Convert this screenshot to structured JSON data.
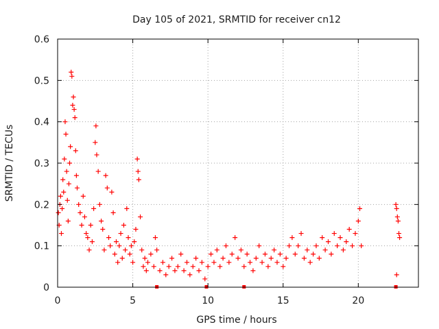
{
  "chart_data": {
    "type": "scatter",
    "title": "Day 105 of 2021, SRMTID for receiver cn12",
    "xlabel": "GPS time / hours",
    "ylabel": "SRMTID / TECUs",
    "xlim": [
      0,
      24
    ],
    "ylim": [
      0,
      0.6
    ],
    "grid": true,
    "x_ticks": [
      0,
      5,
      10,
      15,
      20
    ],
    "x_tick_labels": [
      "0",
      "5",
      "10",
      "15",
      "20"
    ],
    "y_ticks": [
      0,
      0.1,
      0.2,
      0.3,
      0.4,
      0.5,
      0.6
    ],
    "y_tick_labels": [
      "0",
      "0.1",
      "0.2",
      "0.3",
      "0.4",
      "0.5",
      "0.6"
    ],
    "series": [
      {
        "name": "SRMTID",
        "color": "#ff0000",
        "marker": "plus",
        "points": [
          [
            0.05,
            0.18
          ],
          [
            0.1,
            0.15
          ],
          [
            0.15,
            0.2
          ],
          [
            0.2,
            0.22
          ],
          [
            0.25,
            0.13
          ],
          [
            0.3,
            0.19
          ],
          [
            0.35,
            0.26
          ],
          [
            0.4,
            0.23
          ],
          [
            0.45,
            0.31
          ],
          [
            0.5,
            0.4
          ],
          [
            0.55,
            0.37
          ],
          [
            0.6,
            0.28
          ],
          [
            0.65,
            0.21
          ],
          [
            0.7,
            0.16
          ],
          [
            0.75,
            0.25
          ],
          [
            0.8,
            0.3
          ],
          [
            0.85,
            0.34
          ],
          [
            0.9,
            0.52
          ],
          [
            0.95,
            0.51
          ],
          [
            1.0,
            0.44
          ],
          [
            1.05,
            0.46
          ],
          [
            1.1,
            0.43
          ],
          [
            1.15,
            0.41
          ],
          [
            1.2,
            0.33
          ],
          [
            1.25,
            0.27
          ],
          [
            1.3,
            0.24
          ],
          [
            1.4,
            0.2
          ],
          [
            1.5,
            0.18
          ],
          [
            1.6,
            0.15
          ],
          [
            1.7,
            0.22
          ],
          [
            1.8,
            0.17
          ],
          [
            1.9,
            0.13
          ],
          [
            2.0,
            0.12
          ],
          [
            2.1,
            0.09
          ],
          [
            2.2,
            0.15
          ],
          [
            2.3,
            0.11
          ],
          [
            2.4,
            0.19
          ],
          [
            2.5,
            0.35
          ],
          [
            2.55,
            0.39
          ],
          [
            2.6,
            0.32
          ],
          [
            2.7,
            0.28
          ],
          [
            2.8,
            0.2
          ],
          [
            2.9,
            0.16
          ],
          [
            3.0,
            0.14
          ],
          [
            3.1,
            0.09
          ],
          [
            3.2,
            0.27
          ],
          [
            3.3,
            0.24
          ],
          [
            3.4,
            0.12
          ],
          [
            3.5,
            0.1
          ],
          [
            3.6,
            0.23
          ],
          [
            3.7,
            0.18
          ],
          [
            3.8,
            0.08
          ],
          [
            3.9,
            0.11
          ],
          [
            4.0,
            0.06
          ],
          [
            4.1,
            0.1
          ],
          [
            4.2,
            0.13
          ],
          [
            4.3,
            0.07
          ],
          [
            4.4,
            0.15
          ],
          [
            4.5,
            0.09
          ],
          [
            4.6,
            0.19
          ],
          [
            4.7,
            0.12
          ],
          [
            4.8,
            0.08
          ],
          [
            4.9,
            0.1
          ],
          [
            5.0,
            0.06
          ],
          [
            5.1,
            0.11
          ],
          [
            5.2,
            0.14
          ],
          [
            5.3,
            0.31
          ],
          [
            5.35,
            0.28
          ],
          [
            5.4,
            0.26
          ],
          [
            5.5,
            0.17
          ],
          [
            5.6,
            0.09
          ],
          [
            5.7,
            0.05
          ],
          [
            5.8,
            0.07
          ],
          [
            5.9,
            0.04
          ],
          [
            6.0,
            0.06
          ],
          [
            6.2,
            0.08
          ],
          [
            6.4,
            0.05
          ],
          [
            6.5,
            0.12
          ],
          [
            6.6,
            0.09
          ],
          [
            6.8,
            0.04
          ],
          [
            7.0,
            0.06
          ],
          [
            7.2,
            0.03
          ],
          [
            7.4,
            0.05
          ],
          [
            7.6,
            0.07
          ],
          [
            7.8,
            0.04
          ],
          [
            8.0,
            0.05
          ],
          [
            8.2,
            0.08
          ],
          [
            8.4,
            0.04
          ],
          [
            8.6,
            0.06
          ],
          [
            8.8,
            0.03
          ],
          [
            9.0,
            0.05
          ],
          [
            9.2,
            0.07
          ],
          [
            9.4,
            0.04
          ],
          [
            9.6,
            0.06
          ],
          [
            9.8,
            0.02
          ],
          [
            10.0,
            0.05
          ],
          [
            10.2,
            0.08
          ],
          [
            10.4,
            0.06
          ],
          [
            10.6,
            0.09
          ],
          [
            10.8,
            0.05
          ],
          [
            11.0,
            0.07
          ],
          [
            11.2,
            0.1
          ],
          [
            11.4,
            0.06
          ],
          [
            11.6,
            0.08
          ],
          [
            11.8,
            0.12
          ],
          [
            12.0,
            0.07
          ],
          [
            12.2,
            0.09
          ],
          [
            12.4,
            0.05
          ],
          [
            12.6,
            0.08
          ],
          [
            12.8,
            0.06
          ],
          [
            13.0,
            0.04
          ],
          [
            13.2,
            0.07
          ],
          [
            13.4,
            0.1
          ],
          [
            13.6,
            0.06
          ],
          [
            13.8,
            0.08
          ],
          [
            14.0,
            0.05
          ],
          [
            14.2,
            0.07
          ],
          [
            14.4,
            0.09
          ],
          [
            14.6,
            0.06
          ],
          [
            14.8,
            0.08
          ],
          [
            15.0,
            0.05
          ],
          [
            15.2,
            0.07
          ],
          [
            15.4,
            0.1
          ],
          [
            15.6,
            0.12
          ],
          [
            15.8,
            0.08
          ],
          [
            16.0,
            0.1
          ],
          [
            16.2,
            0.13
          ],
          [
            16.4,
            0.07
          ],
          [
            16.6,
            0.09
          ],
          [
            16.8,
            0.06
          ],
          [
            17.0,
            0.08
          ],
          [
            17.2,
            0.1
          ],
          [
            17.4,
            0.07
          ],
          [
            17.6,
            0.12
          ],
          [
            17.8,
            0.09
          ],
          [
            18.0,
            0.11
          ],
          [
            18.2,
            0.08
          ],
          [
            18.4,
            0.13
          ],
          [
            18.6,
            0.1
          ],
          [
            18.8,
            0.12
          ],
          [
            19.0,
            0.09
          ],
          [
            19.2,
            0.11
          ],
          [
            19.4,
            0.14
          ],
          [
            19.6,
            0.1
          ],
          [
            19.8,
            0.13
          ],
          [
            20.0,
            0.16
          ],
          [
            20.1,
            0.19
          ],
          [
            20.2,
            0.1
          ],
          [
            22.5,
            0.2
          ],
          [
            22.55,
            0.19
          ],
          [
            22.6,
            0.17
          ],
          [
            22.65,
            0.16
          ],
          [
            22.7,
            0.13
          ],
          [
            22.75,
            0.12
          ],
          [
            22.55,
            0.03
          ]
        ]
      }
    ],
    "zero_markers_x": [
      6.6,
      9.9,
      12.4,
      22.5
    ]
  }
}
